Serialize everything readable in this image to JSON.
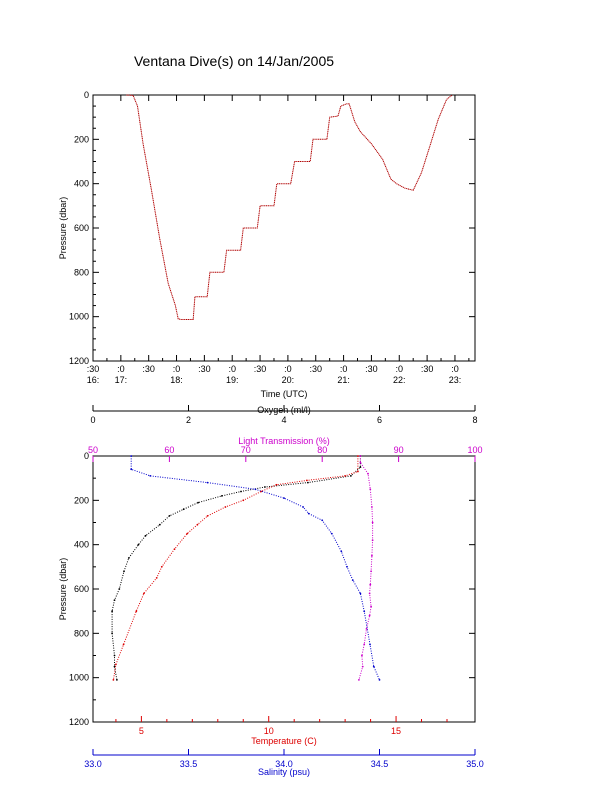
{
  "title": "Ventana Dive(s) on 14/Jan/2005",
  "colors": {
    "axis": "#000000",
    "oxygen": "#000000",
    "transmission": "#cc00cc",
    "temperature": "#dd0000",
    "salinity": "#0000cc",
    "pressure_trace": "#b00000"
  },
  "chart_data": [
    {
      "type": "line",
      "title": "",
      "xlabel": "Time (UTC)",
      "ylabel": "Pressure (dbar)",
      "ylim": [
        1200,
        0
      ],
      "yticks": [
        0,
        200,
        400,
        600,
        800,
        1000,
        1200
      ],
      "xlim": [
        16.5,
        23.36
      ],
      "xticks": [
        {
          "t": 16.5,
          "top": ":30",
          "bottom": "16:"
        },
        {
          "t": 17.0,
          "top": ":0",
          "bottom": "17:"
        },
        {
          "t": 17.5,
          "top": ":30",
          "bottom": ""
        },
        {
          "t": 18.0,
          "top": ":0",
          "bottom": "18:"
        },
        {
          "t": 18.5,
          "top": ":30",
          "bottom": ""
        },
        {
          "t": 19.0,
          "top": ":0",
          "bottom": "19:"
        },
        {
          "t": 19.5,
          "top": ":30",
          "bottom": ""
        },
        {
          "t": 20.0,
          "top": ":0",
          "bottom": "20:"
        },
        {
          "t": 20.5,
          "top": ":30",
          "bottom": ""
        },
        {
          "t": 21.0,
          "top": ":0",
          "bottom": "21:"
        },
        {
          "t": 21.5,
          "top": ":30",
          "bottom": ""
        },
        {
          "t": 22.0,
          "top": ":0",
          "bottom": "22:"
        },
        {
          "t": 22.5,
          "top": ":30",
          "bottom": ""
        },
        {
          "t": 23.0,
          "top": ":0",
          "bottom": "23:"
        }
      ],
      "series": [
        {
          "x": [
            17.1,
            17.22,
            17.3,
            17.4,
            17.55,
            17.7,
            17.85,
            17.98,
            18.03,
            18.08,
            18.3,
            18.33,
            18.55,
            18.6,
            18.85,
            18.9,
            19.15,
            19.2,
            19.45,
            19.5,
            19.75,
            19.8,
            20.05,
            20.12,
            20.4,
            20.45,
            20.7,
            20.75,
            20.9,
            20.95,
            21.05,
            21.1,
            21.2,
            21.3,
            21.5,
            21.7,
            21.85,
            21.95,
            22.1,
            22.25,
            22.4,
            22.55,
            22.7,
            22.85,
            22.95
          ],
          "y": [
            0,
            2,
            50,
            220,
            430,
            650,
            850,
            950,
            1010,
            1013,
            1013,
            910,
            910,
            800,
            800,
            700,
            700,
            600,
            600,
            500,
            500,
            400,
            400,
            300,
            300,
            200,
            200,
            100,
            95,
            50,
            40,
            40,
            120,
            165,
            220,
            290,
            380,
            400,
            420,
            430,
            350,
            230,
            110,
            20,
            0
          ]
        }
      ]
    },
    {
      "type": "scatter",
      "title": "",
      "ylabel": "Pressure (dbar)",
      "ylim": [
        1200,
        0
      ],
      "yticks": [
        0,
        200,
        400,
        600,
        800,
        1000,
        1200
      ],
      "axes": [
        {
          "label": "Oxygen (ml/l)",
          "position": "top-outer",
          "range": [
            0,
            8
          ],
          "ticks": [
            0,
            2,
            4,
            6,
            8
          ]
        },
        {
          "label": "Light Transmission (%)",
          "position": "top-inner",
          "range": [
            50,
            100
          ],
          "ticks": [
            50,
            60,
            70,
            80,
            90,
            100
          ]
        },
        {
          "label": "Temperature (C)",
          "position": "bottom-inner",
          "range": [
            3.1,
            18.1
          ],
          "ticks": [
            5,
            10,
            15
          ],
          "minor": [
            4,
            6,
            7,
            8,
            9,
            11,
            12,
            13,
            14,
            16,
            17
          ]
        },
        {
          "label": "Salinity (psu)",
          "position": "bottom-outer",
          "range": [
            33.0,
            35.0
          ],
          "ticks": [
            33.0,
            33.5,
            34.0,
            34.5,
            35.0
          ],
          "tick_labels": [
            "33.0",
            "33.5",
            "34.0",
            "34.5",
            "35.0"
          ]
        }
      ],
      "series": [
        {
          "name": "Oxygen (ml/l)",
          "x": [
            5.6,
            5.6,
            5.4,
            4.5,
            3.6,
            3.1,
            2.7,
            2.2,
            1.9,
            1.6,
            1.4,
            1.1,
            0.95,
            0.75,
            0.65,
            0.55,
            0.45,
            0.4,
            0.4,
            0.45,
            0.45,
            0.5
          ],
          "y": [
            0,
            50,
            90,
            120,
            140,
            160,
            180,
            210,
            240,
            270,
            310,
            360,
            400,
            460,
            520,
            600,
            650,
            700,
            800,
            900,
            950,
            1010
          ]
        },
        {
          "name": "Light Transmission (%)",
          "x": [
            85.0,
            85.0,
            86.0,
            86.3,
            86.5,
            86.6,
            86.6,
            86.5,
            86.4,
            86.3,
            86.2,
            86.4,
            86.2,
            85.8,
            85.5,
            85.2,
            85.3,
            84.8
          ],
          "y": [
            0,
            30,
            80,
            150,
            230,
            300,
            380,
            450,
            520,
            580,
            620,
            680,
            720,
            780,
            850,
            900,
            950,
            1010
          ]
        },
        {
          "name": "Temperature (C)",
          "x": [
            13.5,
            13.5,
            13.0,
            11.5,
            10.3,
            9.7,
            9.0,
            8.3,
            7.6,
            7.2,
            6.8,
            6.3,
            5.8,
            5.6,
            5.1,
            4.8,
            4.3,
            4.0,
            3.9
          ],
          "y": [
            0,
            70,
            90,
            110,
            130,
            160,
            200,
            230,
            270,
            310,
            350,
            420,
            500,
            550,
            620,
            700,
            850,
            940,
            1010
          ]
        },
        {
          "name": "Salinity (psu)",
          "x": [
            33.2,
            33.2,
            33.3,
            33.6,
            33.85,
            34.0,
            34.1,
            34.13,
            34.2,
            34.25,
            34.3,
            34.33,
            34.36,
            34.4,
            34.42,
            34.45,
            34.47,
            34.5
          ],
          "y": [
            0,
            60,
            90,
            120,
            150,
            190,
            230,
            260,
            290,
            350,
            430,
            500,
            560,
            620,
            700,
            850,
            950,
            1010
          ]
        }
      ]
    }
  ]
}
